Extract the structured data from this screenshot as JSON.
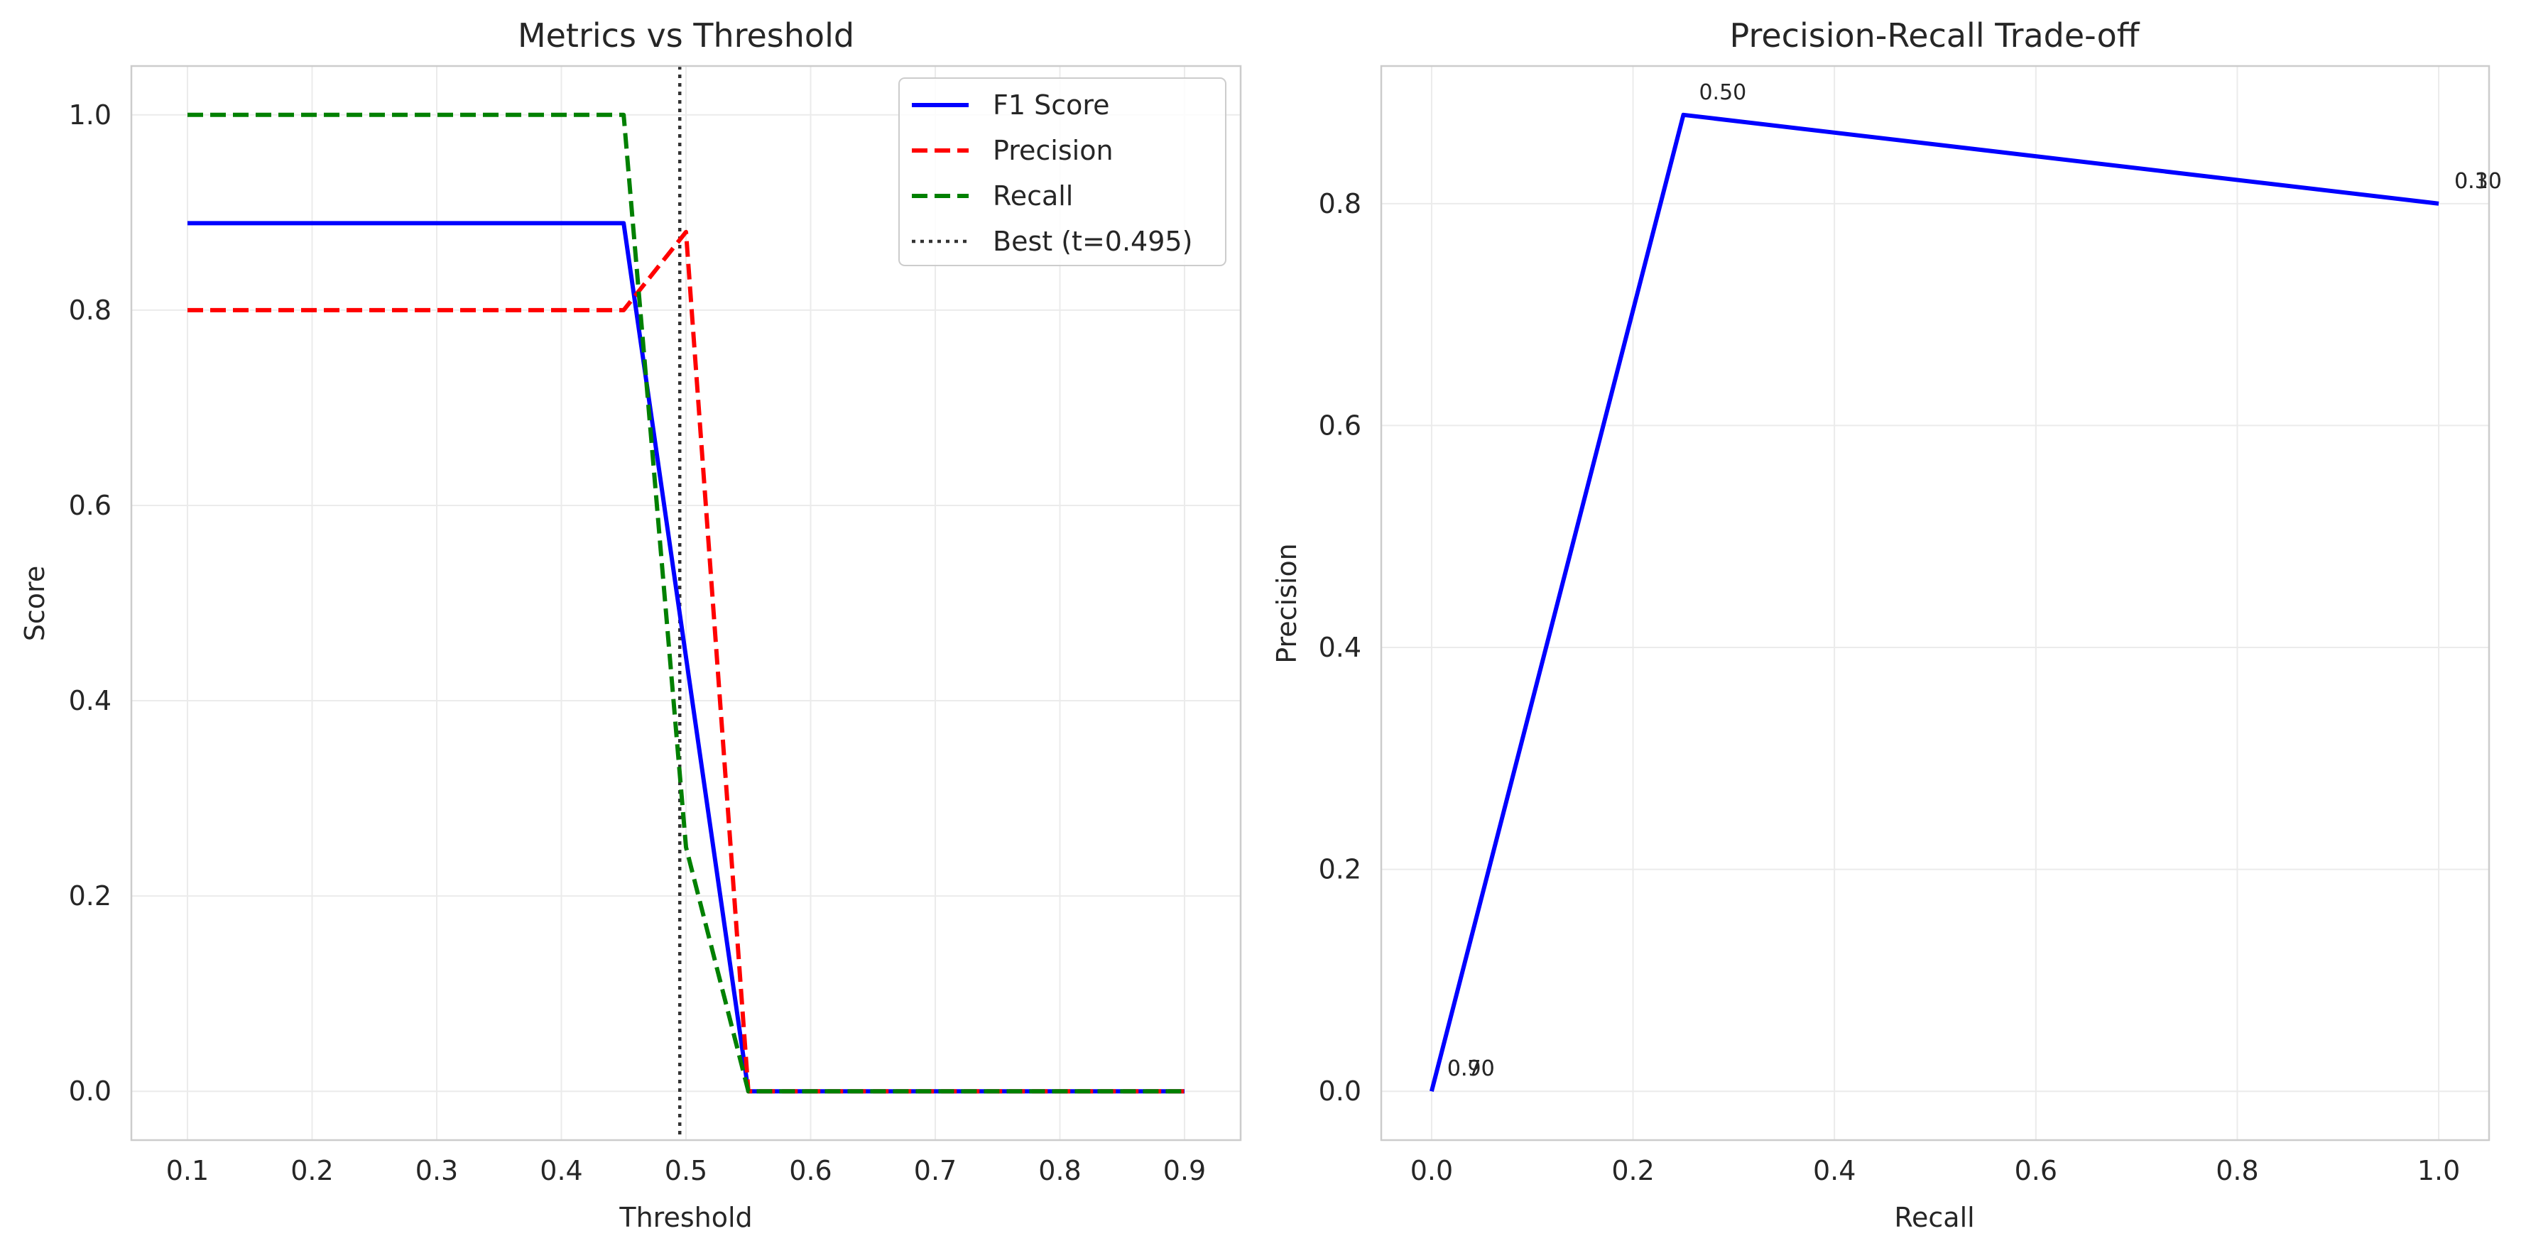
{
  "chart_data": [
    {
      "type": "line",
      "title": "Metrics vs Threshold",
      "xlabel": "Threshold",
      "ylabel": "Score",
      "xlim": [
        0.055,
        0.945
      ],
      "ylim": [
        -0.05,
        1.05
      ],
      "xticks": [
        0.1,
        0.2,
        0.3,
        0.4,
        0.5,
        0.6,
        0.7,
        0.8,
        0.9
      ],
      "xtick_labels": [
        "0.1",
        "0.2",
        "0.3",
        "0.4",
        "0.5",
        "0.6",
        "0.7",
        "0.8",
        "0.9"
      ],
      "yticks": [
        0.0,
        0.2,
        0.4,
        0.6,
        0.8,
        1.0
      ],
      "ytick_labels": [
        "0.0",
        "0.2",
        "0.4",
        "0.6",
        "0.8",
        "1.0"
      ],
      "grid": true,
      "legend_position": "top-right",
      "series": [
        {
          "name": "F1 Score",
          "color": "#0000ff",
          "style": "solid",
          "x": [
            0.1,
            0.45,
            0.55,
            0.9
          ],
          "y": [
            0.889,
            0.889,
            0.0,
            0.0
          ]
        },
        {
          "name": "Precision",
          "color": "#ff0000",
          "style": "dashed",
          "x": [
            0.1,
            0.45,
            0.5,
            0.55,
            0.9
          ],
          "y": [
            0.8,
            0.8,
            0.88,
            0.0,
            0.0
          ]
        },
        {
          "name": "Recall",
          "color": "#008000",
          "style": "dashed",
          "x": [
            0.1,
            0.45,
            0.5,
            0.55,
            0.9
          ],
          "y": [
            1.0,
            1.0,
            0.25,
            0.0,
            0.0
          ]
        }
      ],
      "reference_line": {
        "name": "Best (t=0.495)",
        "x": 0.495,
        "color": "#333333",
        "style": "dotted"
      }
    },
    {
      "type": "line",
      "title": "Precision-Recall Trade-off",
      "xlabel": "Recall",
      "ylabel": "Precision",
      "xlim": [
        -0.05,
        1.05
      ],
      "ylim": [
        -0.044,
        0.924
      ],
      "xticks": [
        0.0,
        0.2,
        0.4,
        0.6,
        0.8,
        1.0
      ],
      "xtick_labels": [
        "0.0",
        "0.2",
        "0.4",
        "0.6",
        "0.8",
        "1.0"
      ],
      "yticks": [
        0.0,
        0.2,
        0.4,
        0.6,
        0.8
      ],
      "ytick_labels": [
        "0.0",
        "0.2",
        "0.4",
        "0.6",
        "0.8"
      ],
      "grid": true,
      "series": [
        {
          "color": "#0000ff",
          "style": "solid",
          "x": [
            0.0,
            0.25,
            1.0
          ],
          "y": [
            0.0,
            0.88,
            0.8
          ]
        }
      ],
      "annotations": [
        {
          "text": "0.50",
          "x": 0.25,
          "y": 0.88
        },
        {
          "text": "0.10",
          "x": 1.0,
          "y": 0.8
        },
        {
          "text": "0.30",
          "x": 1.0,
          "y": 0.8
        },
        {
          "text": "0.70",
          "x": 0.0,
          "y": 0.0
        },
        {
          "text": "0.90",
          "x": 0.0,
          "y": 0.0
        }
      ]
    }
  ]
}
